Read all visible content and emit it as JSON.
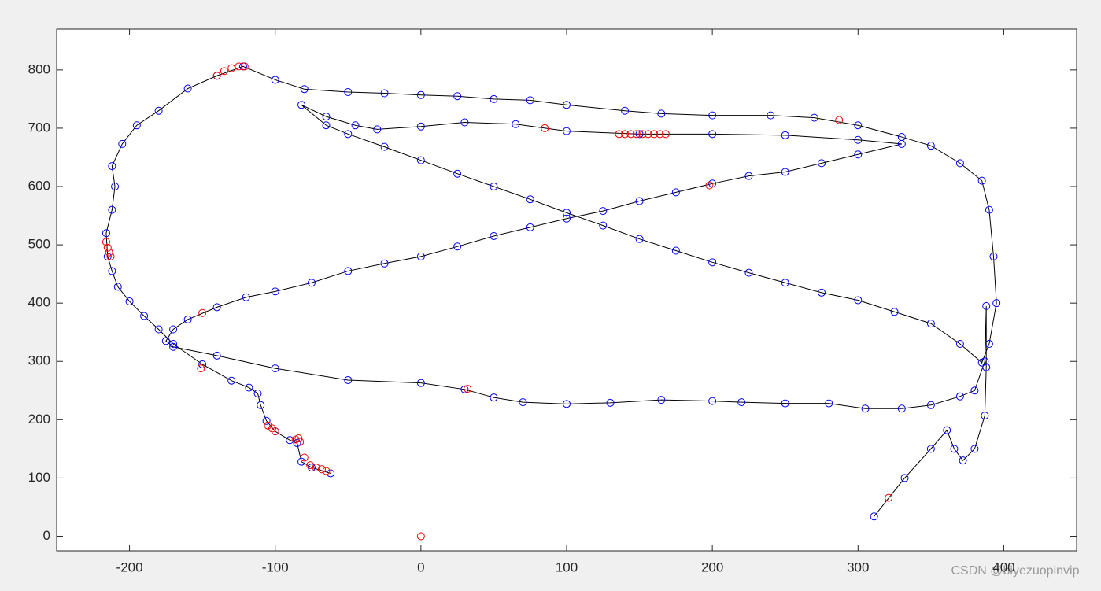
{
  "chart_data": {
    "type": "scatter",
    "xlim": [
      -250,
      450
    ],
    "ylim": [
      -25,
      870
    ],
    "xticks": [
      -200,
      -100,
      0,
      100,
      200,
      300,
      400
    ],
    "yticks": [
      0,
      100,
      200,
      300,
      400,
      500,
      600,
      700,
      800
    ],
    "grid": false,
    "watermark": "CSDN @biyezuopinvip",
    "series": [
      {
        "color": "#0000ff",
        "line_color": "#000000",
        "line": true,
        "x": [
          311,
          332,
          350,
          361,
          366,
          372,
          380,
          387,
          388,
          388,
          387,
          380,
          370,
          350,
          330,
          305,
          280,
          250,
          220,
          200,
          165,
          130,
          100,
          70,
          50,
          30,
          0,
          -50,
          -100,
          -140,
          -170,
          -175,
          -170,
          -160,
          -140,
          -120,
          -100,
          -75,
          -50,
          -25,
          0,
          25,
          50,
          75,
          100,
          125,
          150,
          175,
          200,
          225,
          250,
          275,
          300,
          330,
          300,
          250,
          200,
          150,
          100,
          65,
          30,
          0,
          -30,
          -45,
          -65,
          -82,
          -65,
          -50,
          -25,
          0,
          25,
          50,
          75,
          100,
          125,
          150,
          175,
          200,
          225,
          250,
          275,
          300,
          325,
          350,
          370,
          385,
          390,
          395,
          393,
          390,
          385,
          370,
          350,
          330,
          300,
          270,
          240,
          200,
          165,
          140,
          100,
          75,
          50,
          25,
          0,
          -25,
          -50,
          -80,
          -100,
          -122,
          -140,
          -160,
          -180,
          -195,
          -205,
          -212,
          -210,
          -212,
          -216,
          -215,
          -212,
          -208,
          -200,
          -190,
          -180,
          -170,
          -150,
          -130,
          -118,
          -112,
          -110,
          -106,
          -100,
          -90,
          -85,
          -82,
          -75,
          -62
        ],
        "values": [
          34,
          100,
          150,
          182,
          150,
          130,
          150,
          207,
          290,
          395,
          300,
          250,
          240,
          225,
          219,
          219,
          228,
          228,
          230,
          232,
          234,
          229,
          227,
          230,
          238,
          252,
          263,
          268,
          288,
          310,
          325,
          335,
          355,
          372,
          393,
          410,
          420,
          435,
          455,
          468,
          480,
          497,
          515,
          530,
          545,
          558,
          575,
          590,
          605,
          618,
          625,
          640,
          655,
          673,
          680,
          688,
          690,
          690,
          695,
          707,
          710,
          703,
          698,
          705,
          720,
          740,
          705,
          690,
          668,
          645,
          622,
          600,
          578,
          555,
          533,
          510,
          490,
          470,
          452,
          435,
          418,
          405,
          385,
          365,
          330,
          298,
          330,
          400,
          480,
          560,
          610,
          640,
          670,
          685,
          705,
          718,
          722,
          722,
          725,
          730,
          740,
          748,
          750,
          755,
          757,
          760,
          762,
          767,
          783,
          806,
          790,
          768,
          730,
          705,
          673,
          635,
          600,
          560,
          520,
          480,
          455,
          428,
          403,
          378,
          355,
          330,
          295,
          267,
          255,
          245,
          225,
          198,
          180,
          165,
          160,
          128,
          118,
          108
        ]
      },
      {
        "color": "#ff0000",
        "line": false,
        "x": [
          0,
          -150,
          -151,
          32,
          85,
          198,
          287,
          321,
          -216,
          -215,
          -214,
          -213,
          -140,
          -135,
          -130,
          -125,
          -121,
          -105,
          -102,
          -100,
          -86,
          -84,
          -83,
          -80,
          -76,
          -72,
          -68,
          -65,
          136,
          140,
          144,
          148,
          152,
          156,
          160,
          164,
          168
        ],
        "values": [
          0,
          383,
          288,
          253,
          700,
          602,
          714,
          66,
          505,
          495,
          487,
          480,
          790,
          798,
          803,
          806,
          806,
          190,
          185,
          180,
          166,
          168,
          162,
          135,
          122,
          118,
          115,
          112,
          690,
          690,
          690,
          690,
          690,
          690,
          690,
          690,
          690
        ]
      }
    ]
  }
}
